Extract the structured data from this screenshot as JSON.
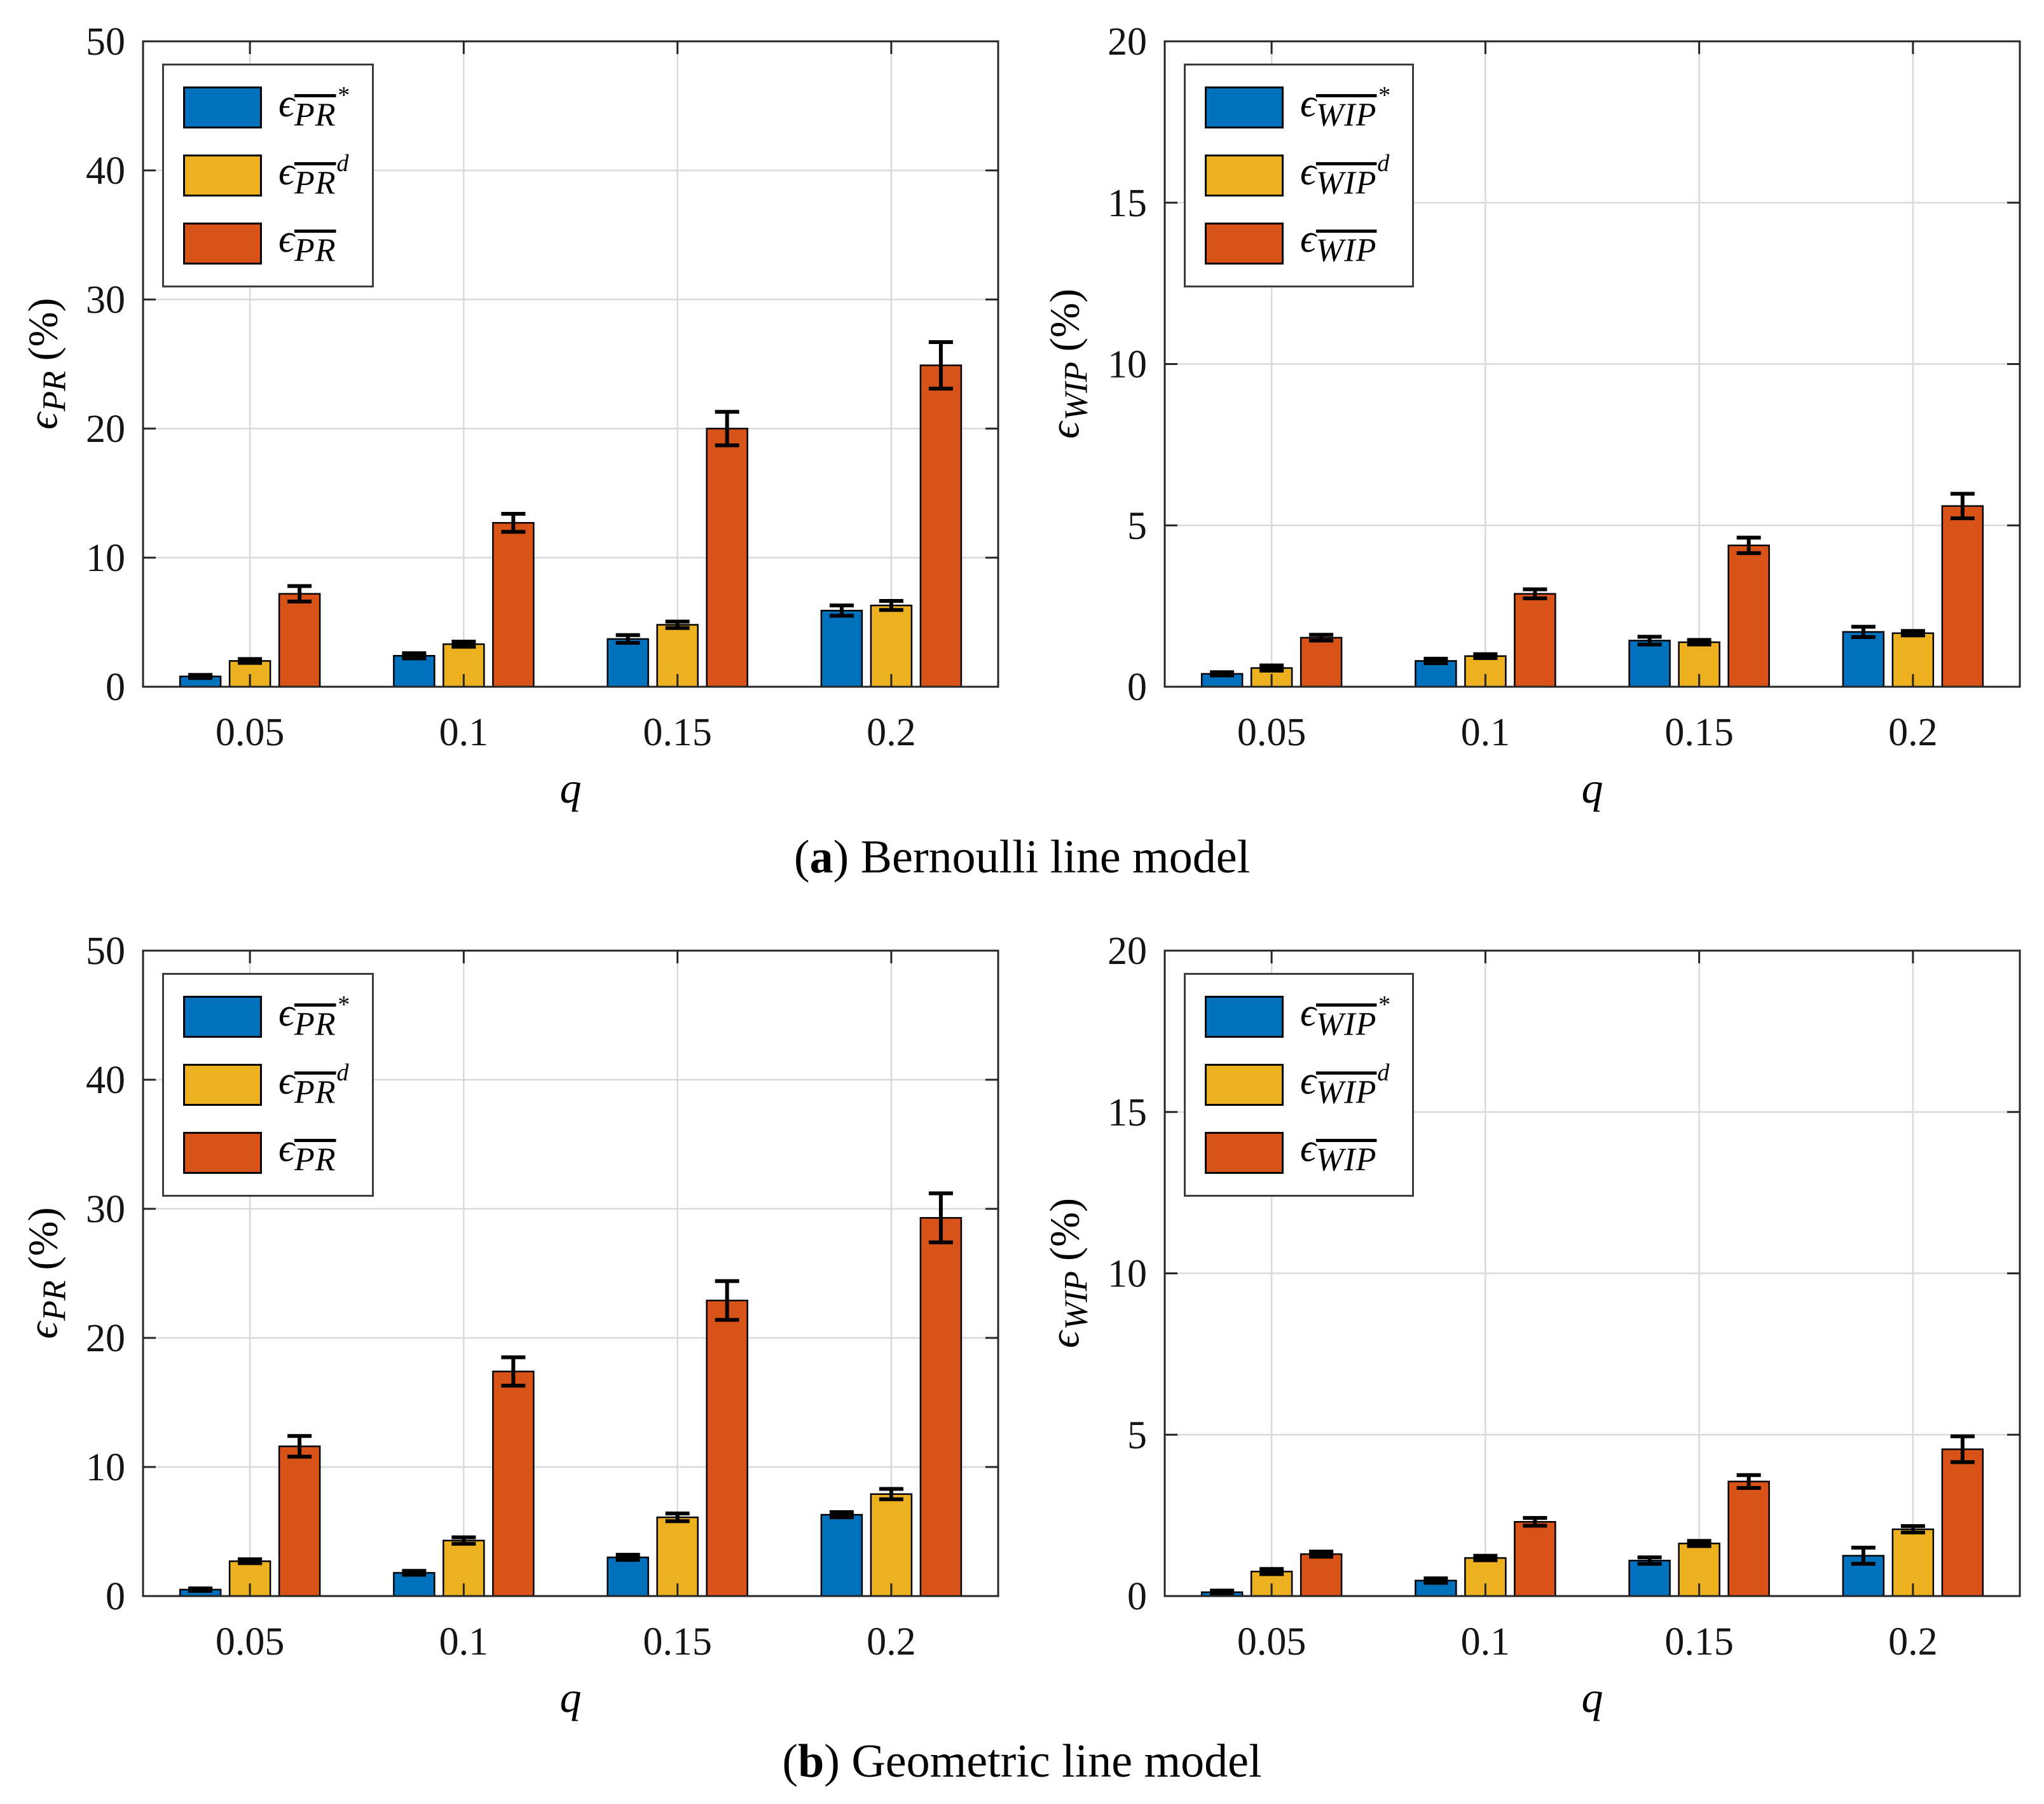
{
  "captions": [
    {
      "prefix": "(",
      "label": "a",
      "text": ") Bernoulli line model"
    },
    {
      "prefix": "(",
      "label": "b",
      "text": ") Geometric line model"
    }
  ],
  "layout_colors": {
    "grid": "#D9D9D9",
    "axis": "#262626",
    "bar_edge": "#000000",
    "error_bar": "#000000"
  },
  "chart_data": [
    {
      "id": "bernoulli-pr",
      "type": "bar",
      "model": "Bernoulli line model",
      "xlabel": "q",
      "ylabel": "ϵ_PR (%)",
      "ylabel_parts": {
        "epsilon": "ϵ",
        "sub": "PR",
        "units": "(%)"
      },
      "ylim": [
        0,
        50
      ],
      "yticks": [
        0,
        10,
        20,
        30,
        40,
        50
      ],
      "categories": [
        "0.05",
        "0.1",
        "0.15",
        "0.2"
      ],
      "grid": true,
      "legend_position": "top-left",
      "series": [
        {
          "name": "epsilon_PRbar_star",
          "legend_parts": {
            "epsilon": "ϵ",
            "base": "PR",
            "sup": "*"
          },
          "color": "#0072BD",
          "values": [
            0.8,
            2.4,
            3.7,
            5.9
          ],
          "errors": [
            0.12,
            0.2,
            0.3,
            0.4
          ]
        },
        {
          "name": "epsilon_PRbar_d",
          "legend_parts": {
            "epsilon": "ϵ",
            "base": "PR",
            "sup": "d"
          },
          "color": "#EDB120",
          "values": [
            2.0,
            3.3,
            4.8,
            6.3
          ],
          "errors": [
            0.15,
            0.2,
            0.25,
            0.35
          ]
        },
        {
          "name": "epsilon_PRbar",
          "legend_parts": {
            "epsilon": "ϵ",
            "base": "PR",
            "sup": ""
          },
          "color": "#D95319",
          "values": [
            7.2,
            12.7,
            20.0,
            24.9
          ],
          "errors": [
            0.6,
            0.7,
            1.3,
            1.8
          ]
        }
      ]
    },
    {
      "id": "bernoulli-wip",
      "type": "bar",
      "model": "Bernoulli line model",
      "xlabel": "q",
      "ylabel": "ϵ_WIP (%)",
      "ylabel_parts": {
        "epsilon": "ϵ",
        "sub": "WIP",
        "units": "(%)"
      },
      "ylim": [
        0,
        20
      ],
      "yticks": [
        0,
        5,
        10,
        15,
        20
      ],
      "categories": [
        "0.05",
        "0.1",
        "0.15",
        "0.2"
      ],
      "grid": true,
      "legend_position": "top-left",
      "series": [
        {
          "name": "epsilon_WIPbar_star",
          "legend_parts": {
            "epsilon": "ϵ",
            "base": "WIP",
            "sup": "*"
          },
          "color": "#0072BD",
          "values": [
            0.4,
            0.8,
            1.43,
            1.7
          ],
          "errors": [
            0.05,
            0.07,
            0.12,
            0.16
          ]
        },
        {
          "name": "epsilon_WIPbar_d",
          "legend_parts": {
            "epsilon": "ϵ",
            "base": "WIP",
            "sup": "d"
          },
          "color": "#EDB120",
          "values": [
            0.58,
            0.95,
            1.38,
            1.66
          ],
          "errors": [
            0.08,
            0.06,
            0.07,
            0.07
          ]
        },
        {
          "name": "epsilon_WIPbar",
          "legend_parts": {
            "epsilon": "ϵ",
            "base": "WIP",
            "sup": ""
          },
          "color": "#D95319",
          "values": [
            1.52,
            2.88,
            4.38,
            5.6
          ],
          "errors": [
            0.09,
            0.14,
            0.24,
            0.38
          ]
        }
      ]
    },
    {
      "id": "geometric-pr",
      "type": "bar",
      "model": "Geometric line model",
      "xlabel": "q",
      "ylabel": "ϵ_PR (%)",
      "ylabel_parts": {
        "epsilon": "ϵ",
        "sub": "PR",
        "units": "(%)"
      },
      "ylim": [
        0,
        50
      ],
      "yticks": [
        0,
        10,
        20,
        30,
        40,
        50
      ],
      "categories": [
        "0.05",
        "0.1",
        "0.15",
        "0.2"
      ],
      "grid": true,
      "legend_position": "top-left",
      "series": [
        {
          "name": "epsilon_PRbar_star",
          "legend_parts": {
            "epsilon": "ϵ",
            "base": "PR",
            "sup": "*"
          },
          "color": "#0072BD",
          "values": [
            0.5,
            1.8,
            3.0,
            6.3
          ],
          "errors": [
            0.1,
            0.15,
            0.2,
            0.2
          ]
        },
        {
          "name": "epsilon_PRbar_d",
          "legend_parts": {
            "epsilon": "ϵ",
            "base": "PR",
            "sup": "d"
          },
          "color": "#EDB120",
          "values": [
            2.7,
            4.3,
            6.1,
            7.9
          ],
          "errors": [
            0.15,
            0.25,
            0.3,
            0.4
          ]
        },
        {
          "name": "epsilon_PRbar",
          "legend_parts": {
            "epsilon": "ϵ",
            "base": "PR",
            "sup": ""
          },
          "color": "#D95319",
          "values": [
            11.6,
            17.4,
            22.9,
            29.3
          ],
          "errors": [
            0.8,
            1.1,
            1.5,
            1.9
          ]
        }
      ]
    },
    {
      "id": "geometric-wip",
      "type": "bar",
      "model": "Geometric line model",
      "xlabel": "q",
      "ylabel": "ϵ_WIP (%)",
      "ylabel_parts": {
        "epsilon": "ϵ",
        "sub": "WIP",
        "units": "(%)"
      },
      "ylim": [
        0,
        20
      ],
      "yticks": [
        0,
        5,
        10,
        15,
        20
      ],
      "categories": [
        "0.05",
        "0.1",
        "0.15",
        "0.2"
      ],
      "grid": true,
      "legend_position": "top-left",
      "series": [
        {
          "name": "epsilon_WIPbar_star",
          "legend_parts": {
            "epsilon": "ϵ",
            "base": "WIP",
            "sup": "*"
          },
          "color": "#0072BD",
          "values": [
            0.12,
            0.48,
            1.1,
            1.25
          ],
          "errors": [
            0.05,
            0.07,
            0.1,
            0.25
          ]
        },
        {
          "name": "epsilon_WIPbar_d",
          "legend_parts": {
            "epsilon": "ϵ",
            "base": "WIP",
            "sup": "d"
          },
          "color": "#EDB120",
          "values": [
            0.76,
            1.18,
            1.63,
            2.07
          ],
          "errors": [
            0.08,
            0.07,
            0.08,
            0.1
          ]
        },
        {
          "name": "epsilon_WIPbar",
          "legend_parts": {
            "epsilon": "ϵ",
            "base": "WIP",
            "sup": ""
          },
          "color": "#D95319",
          "values": [
            1.3,
            2.3,
            3.55,
            4.55
          ],
          "errors": [
            0.08,
            0.12,
            0.2,
            0.4
          ]
        }
      ]
    }
  ]
}
